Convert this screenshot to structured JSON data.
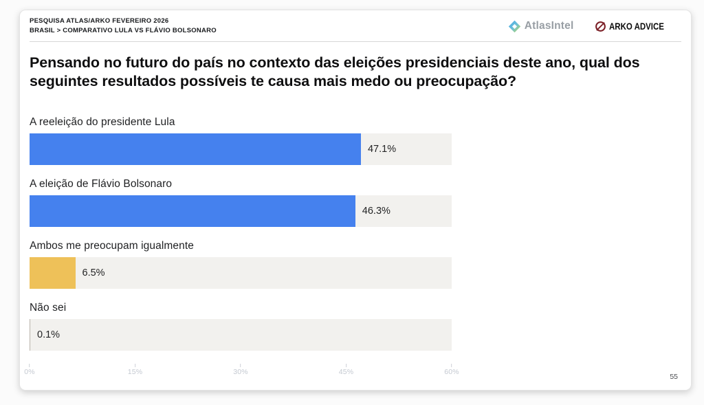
{
  "header": {
    "line1": "PESQUISA ATLAS/ARKO FEVEREIRO 2026",
    "line2": "BRASIL > COMPARATIVO LULA VS FLÁVIO BOLSONARO"
  },
  "logos": {
    "atlasintel_label": "AtlasIntel",
    "arko_label": "ARKO ADVICE"
  },
  "title": "Pensando no futuro do país no contexto das eleições presidenciais deste ano, qual dos seguintes resultados possíveis te causa mais medo ou preocupação?",
  "page_number": "55",
  "colors": {
    "bar_blue": "#4581ee",
    "bar_yellow": "#eec159",
    "bar_gray": "#b9b3aa",
    "track": "#f2f1ee"
  },
  "chart_data": {
    "type": "bar",
    "orientation": "horizontal",
    "title": "Pensando no futuro do país no contexto das eleições presidenciais deste ano, qual dos seguintes resultados possíveis te causa mais medo ou preocupação?",
    "categories": [
      "A reeleição do presidente Lula",
      "A eleição de Flávio Bolsonaro",
      "Ambos me preocupam igualmente",
      "Não sei"
    ],
    "values": [
      47.1,
      46.3,
      6.5,
      0.1
    ],
    "value_labels": [
      "47.1%",
      "46.3%",
      "6.5%",
      "0.1%"
    ],
    "bar_colors": [
      "#4581ee",
      "#4581ee",
      "#eec159",
      "#b9b3aa"
    ],
    "xlim": [
      0,
      60
    ],
    "x_tick_labels": [
      "0%",
      "15%",
      "30%",
      "45%",
      "60%"
    ],
    "x_tick_values": [
      0,
      15,
      30,
      45,
      60
    ],
    "grid": false,
    "legend": false
  }
}
